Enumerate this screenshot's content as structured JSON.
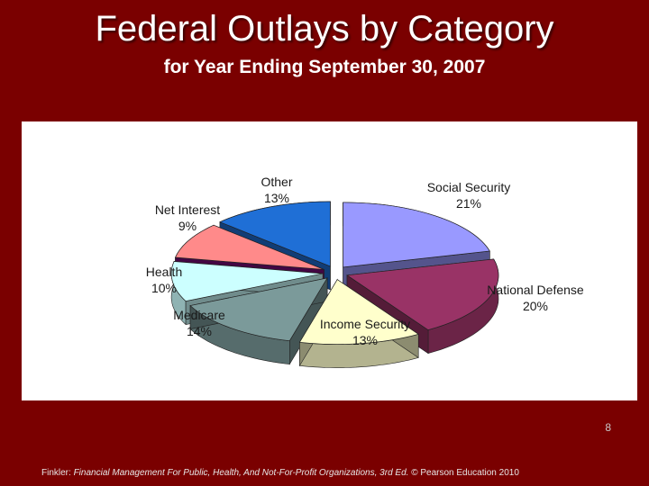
{
  "slide": {
    "title": "Federal Outlays by Category",
    "subtitle": "for Year Ending September 30, 2007",
    "page_number": "8",
    "footer": {
      "author": "Finkler:",
      "book": "Financial Management For Public, Health, And Not-For-Profit Organizations, 3rd Ed.",
      "copyright": "© Pearson Education 2010"
    }
  },
  "chart_data": {
    "type": "pie",
    "title": "",
    "exploded": true,
    "three_d": true,
    "start_angle_deg": 0,
    "direction": "clockwise",
    "slices": [
      {
        "label": "Social Security",
        "percent_label": "21%",
        "value": 21,
        "color": "#9999ff"
      },
      {
        "label": "National Defense",
        "percent_label": "20%",
        "value": 20,
        "color": "#993366"
      },
      {
        "label": "Income Security",
        "percent_label": "13%",
        "value": 13,
        "color": "#ffffcc"
      },
      {
        "label": "Medicare",
        "percent_label": "14%",
        "value": 14,
        "color": "#7b9a9a"
      },
      {
        "label": "Health",
        "percent_label": "10%",
        "value": 10,
        "color": "#ccffff"
      },
      {
        "label": "Net Interest",
        "percent_label": "9%",
        "value": 9,
        "color": "#660066"
      },
      {
        "label": "Other",
        "percent_label": "13%",
        "value": 13,
        "color": "#ff8080"
      },
      {
        "label": "",
        "percent_label": "",
        "value": 0,
        "color": "#0066cc"
      }
    ]
  }
}
